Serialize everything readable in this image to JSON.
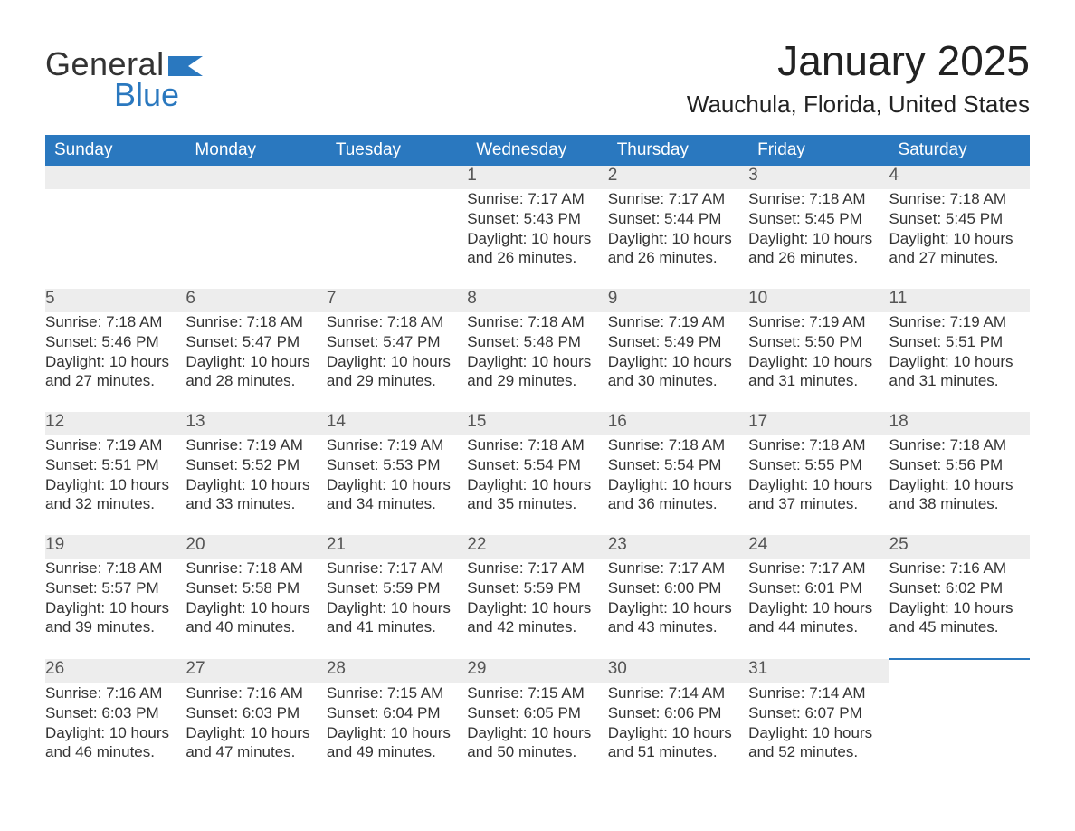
{
  "brand": {
    "line1": "General",
    "line2": "Blue",
    "color": "#2a78bf"
  },
  "title": "January 2025",
  "location": "Wauchula, Florida, United States",
  "colors": {
    "header_bg": "#2a78bf",
    "header_text": "#ffffff",
    "daynum_bg": "#ededed",
    "daynum_text": "#555555",
    "body_text": "#333333",
    "rule": "#2a78bf"
  },
  "fonts": {
    "title_size_pt": 34,
    "location_size_pt": 20,
    "header_size_pt": 14,
    "cell_size_pt": 13
  },
  "weekdays": [
    "Sunday",
    "Monday",
    "Tuesday",
    "Wednesday",
    "Thursday",
    "Friday",
    "Saturday"
  ],
  "labels": {
    "sunrise": "Sunrise",
    "sunset": "Sunset",
    "daylight": "Daylight"
  },
  "weeks": [
    [
      null,
      null,
      null,
      {
        "day": "1",
        "sunrise": "7:17 AM",
        "sunset": "5:43 PM",
        "daylight": "10 hours and 26 minutes."
      },
      {
        "day": "2",
        "sunrise": "7:17 AM",
        "sunset": "5:44 PM",
        "daylight": "10 hours and 26 minutes."
      },
      {
        "day": "3",
        "sunrise": "7:18 AM",
        "sunset": "5:45 PM",
        "daylight": "10 hours and 26 minutes."
      },
      {
        "day": "4",
        "sunrise": "7:18 AM",
        "sunset": "5:45 PM",
        "daylight": "10 hours and 27 minutes."
      }
    ],
    [
      {
        "day": "5",
        "sunrise": "7:18 AM",
        "sunset": "5:46 PM",
        "daylight": "10 hours and 27 minutes."
      },
      {
        "day": "6",
        "sunrise": "7:18 AM",
        "sunset": "5:47 PM",
        "daylight": "10 hours and 28 minutes."
      },
      {
        "day": "7",
        "sunrise": "7:18 AM",
        "sunset": "5:47 PM",
        "daylight": "10 hours and 29 minutes."
      },
      {
        "day": "8",
        "sunrise": "7:18 AM",
        "sunset": "5:48 PM",
        "daylight": "10 hours and 29 minutes."
      },
      {
        "day": "9",
        "sunrise": "7:19 AM",
        "sunset": "5:49 PM",
        "daylight": "10 hours and 30 minutes."
      },
      {
        "day": "10",
        "sunrise": "7:19 AM",
        "sunset": "5:50 PM",
        "daylight": "10 hours and 31 minutes."
      },
      {
        "day": "11",
        "sunrise": "7:19 AM",
        "sunset": "5:51 PM",
        "daylight": "10 hours and 31 minutes."
      }
    ],
    [
      {
        "day": "12",
        "sunrise": "7:19 AM",
        "sunset": "5:51 PM",
        "daylight": "10 hours and 32 minutes."
      },
      {
        "day": "13",
        "sunrise": "7:19 AM",
        "sunset": "5:52 PM",
        "daylight": "10 hours and 33 minutes."
      },
      {
        "day": "14",
        "sunrise": "7:19 AM",
        "sunset": "5:53 PM",
        "daylight": "10 hours and 34 minutes."
      },
      {
        "day": "15",
        "sunrise": "7:18 AM",
        "sunset": "5:54 PM",
        "daylight": "10 hours and 35 minutes."
      },
      {
        "day": "16",
        "sunrise": "7:18 AM",
        "sunset": "5:54 PM",
        "daylight": "10 hours and 36 minutes."
      },
      {
        "day": "17",
        "sunrise": "7:18 AM",
        "sunset": "5:55 PM",
        "daylight": "10 hours and 37 minutes."
      },
      {
        "day": "18",
        "sunrise": "7:18 AM",
        "sunset": "5:56 PM",
        "daylight": "10 hours and 38 minutes."
      }
    ],
    [
      {
        "day": "19",
        "sunrise": "7:18 AM",
        "sunset": "5:57 PM",
        "daylight": "10 hours and 39 minutes."
      },
      {
        "day": "20",
        "sunrise": "7:18 AM",
        "sunset": "5:58 PM",
        "daylight": "10 hours and 40 minutes."
      },
      {
        "day": "21",
        "sunrise": "7:17 AM",
        "sunset": "5:59 PM",
        "daylight": "10 hours and 41 minutes."
      },
      {
        "day": "22",
        "sunrise": "7:17 AM",
        "sunset": "5:59 PM",
        "daylight": "10 hours and 42 minutes."
      },
      {
        "day": "23",
        "sunrise": "7:17 AM",
        "sunset": "6:00 PM",
        "daylight": "10 hours and 43 minutes."
      },
      {
        "day": "24",
        "sunrise": "7:17 AM",
        "sunset": "6:01 PM",
        "daylight": "10 hours and 44 minutes."
      },
      {
        "day": "25",
        "sunrise": "7:16 AM",
        "sunset": "6:02 PM",
        "daylight": "10 hours and 45 minutes."
      }
    ],
    [
      {
        "day": "26",
        "sunrise": "7:16 AM",
        "sunset": "6:03 PM",
        "daylight": "10 hours and 46 minutes."
      },
      {
        "day": "27",
        "sunrise": "7:16 AM",
        "sunset": "6:03 PM",
        "daylight": "10 hours and 47 minutes."
      },
      {
        "day": "28",
        "sunrise": "7:15 AM",
        "sunset": "6:04 PM",
        "daylight": "10 hours and 49 minutes."
      },
      {
        "day": "29",
        "sunrise": "7:15 AM",
        "sunset": "6:05 PM",
        "daylight": "10 hours and 50 minutes."
      },
      {
        "day": "30",
        "sunrise": "7:14 AM",
        "sunset": "6:06 PM",
        "daylight": "10 hours and 51 minutes."
      },
      {
        "day": "31",
        "sunrise": "7:14 AM",
        "sunset": "6:07 PM",
        "daylight": "10 hours and 52 minutes."
      },
      null
    ]
  ]
}
